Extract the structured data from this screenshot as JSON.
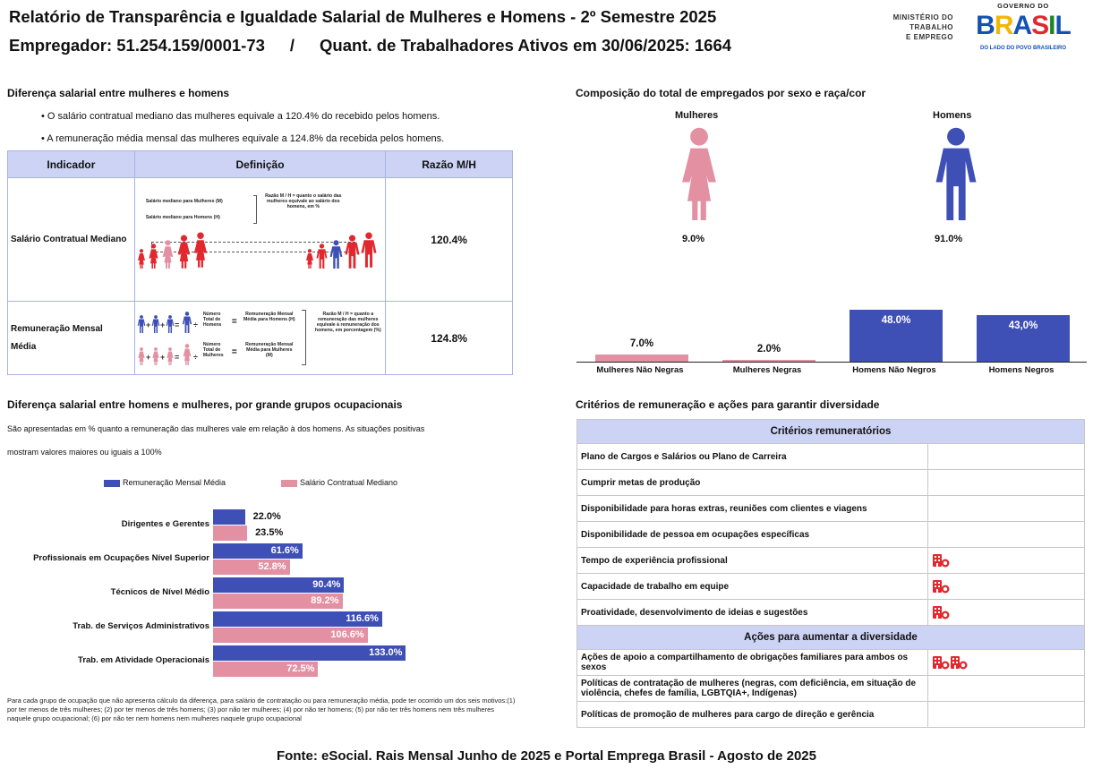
{
  "header": {
    "title": "Relatório de Transparência e Igualdade Salarial de Mulheres e Homens - 2º Semestre 2025",
    "employer": "Empregador: 51.254.159/0001-73",
    "separator": "/",
    "workers": "Quant. de Trabalhadores Ativos em 30/06/2025: 1664"
  },
  "logos": {
    "ministry_line1": "MINISTÉRIO DO",
    "ministry_line2": "TRABALHO",
    "ministry_line3": "E EMPREGO",
    "gov_top": "GOVERNO DO",
    "gov_brasil": "BRASIL",
    "gov_bottom": "DO LADO DO POVO BRASILEIRO"
  },
  "salary_diff": {
    "title": "Diferença salarial entre mulheres e homens",
    "bullet1": "• O salário contratual mediano das mulheres equivale a 120.4% do recebido pelos homens.",
    "bullet2": "• A remuneração média mensal das mulheres equivale a 124.8% da recebida pelos homens.",
    "table": {
      "col_indicador": "Indicador",
      "col_definicao": "Definição",
      "col_razao": "Razão M/H",
      "row1_label": "Salário Contratual Mediano",
      "row1_value": "120.4%",
      "row1_def_m": "Salário mediano para Mulheres (M)",
      "row1_def_h": "Salário mediano para Homens (H)",
      "row1_def_ratio": "Razão M / H = quanto o salário das mulheres equivale ao salário dos homens, em %",
      "row2_label_a": "Remuneração Mensal",
      "row2_label_b": "Média",
      "row2_value": "124.8%",
      "row2_total_h": "Número Total de Homens",
      "row2_total_m": "Número Total de Mulheres",
      "row2_rem_h": "Remuneração Mensal Média para Homens (H)",
      "row2_rem_m": "Remuneração Mensal Média para Mulheres (M)",
      "row2_def_ratio": "Razão M / H = quanto a remuneração das mulheres equivale à remuneração dos homens, em porcentagem (%)"
    }
  },
  "composition": {
    "title": "Composição do total de empregados por sexo e raça/cor",
    "women_label": "Mulheres",
    "men_label": "Homens",
    "women_pct": "9.0%",
    "men_pct": "91.0%"
  },
  "chart_data": [
    {
      "type": "bar",
      "title": "Composição do total de empregados por sexo e raça/cor",
      "categories": [
        "Mulheres Não Negras",
        "Mulheres Negras",
        "Homens Não Negros",
        "Homens Negros"
      ],
      "values": [
        7.0,
        2.0,
        48.0,
        43.0
      ],
      "value_labels": [
        "7.0%",
        "2.0%",
        "48.0%",
        "43,0%"
      ],
      "colors": [
        "#e390a3",
        "#e390a3",
        "#3e4fb5",
        "#3e4fb5"
      ],
      "ylim": [
        0,
        50
      ]
    },
    {
      "type": "bar",
      "orientation": "horizontal",
      "title": "Diferença salarial entre homens e mulheres, por grande grupos ocupacionais",
      "categories": [
        "Dirigentes e Gerentes",
        "Profissionais em Ocupações Nível Superior",
        "Técnicos de Nível Médio",
        "Trab. de Serviços Administrativos",
        "Trab. em Atividade Operacionais"
      ],
      "series": [
        {
          "name": "Remuneração Mensal Média",
          "color": "#3e4fb5",
          "values": [
            22.0,
            61.6,
            90.4,
            116.6,
            133.0
          ],
          "labels": [
            "22.0%",
            "61.6%",
            "90.4%",
            "116.6%",
            "133.0%"
          ]
        },
        {
          "name": "Salário Contratual Mediano",
          "color": "#e390a3",
          "values": [
            23.5,
            52.8,
            89.2,
            106.6,
            72.5
          ],
          "labels": [
            "23.5%",
            "52.8%",
            "89.2%",
            "106.6%",
            "72.5%"
          ]
        }
      ],
      "xlim": [
        0,
        150
      ]
    }
  ],
  "occupational": {
    "title": "Diferença salarial entre homens e mulheres, por grande grupos ocupacionais",
    "desc1": "São apresentadas em % quanto a remuneração das mulheres vale em relação à dos homens. As situações positivas",
    "desc2": "mostram valores maiores ou iguais a 100%",
    "note": "Para cada grupo de ocupação que não apresenta cálculo da diferença, para salário de contratação ou para remuneração média, pode ter ocorrido um dos seis motivos:(1) por ter menos de três mulheres; (2) por ter menos de três homens; (3) por não ter mulheres; (4) por não ter homens; (5) por não ter três homens nem três mulheres naquele grupo ocupacional; (6) por não ter nem homens nem mulheres naquele grupo ocupacional"
  },
  "criteria": {
    "title": "Critérios de remuneração e ações para garantir diversidade",
    "header1": "Critérios remuneratórios",
    "rows": [
      {
        "label": "Plano de Cargos e Salários ou Plano de Carreira",
        "icons": 0
      },
      {
        "label": "Cumprir metas de produção",
        "icons": 0
      },
      {
        "label": "Disponibilidade para horas extras, reuniões com clientes e viagens",
        "icons": 0
      },
      {
        "label": "Disponibilidade de pessoa em ocupações específicas",
        "icons": 0
      },
      {
        "label": "Tempo de experiência profissional",
        "icons": 1
      },
      {
        "label": "Capacidade de trabalho em equipe",
        "icons": 1
      },
      {
        "label": "Proatividade, desenvolvimento de ideias e sugestões",
        "icons": 1
      }
    ],
    "header2": "Ações para aumentar a diversidade",
    "actions": [
      {
        "label": "Ações de apoio a compartilhamento de obrigações familiares para ambos os sexos",
        "icons": 2
      },
      {
        "label": "Políticas de contratação de mulheres (negras, com deficiência, em situação de violência, chefes de família, LGBTQIA+, Indígenas)",
        "icons": 0
      },
      {
        "label": "Políticas de promoção de mulheres para cargo de direção e gerência",
        "icons": 0
      }
    ]
  },
  "footer": "Fonte: eSocial. Rais Mensal Junho de 2025 e Portal Emprega Brasil - Agosto de 2025",
  "colors": {
    "pink": "#e390a3",
    "blue": "#3e4fb5",
    "table_header": "#cdd3f5",
    "icon_red": "#e0282e"
  }
}
